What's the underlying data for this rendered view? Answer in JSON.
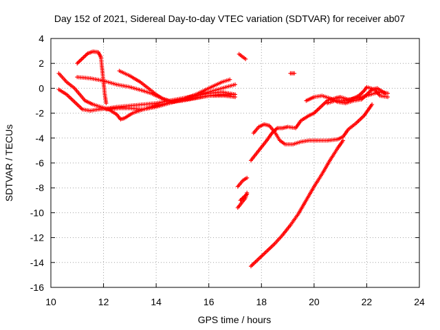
{
  "chart_data": {
    "type": "scatter",
    "title": "Day 152 of 2021, Sidereal Day-to-day VTEC variation (SDTVAR) for receiver ab07",
    "xlabel": "GPS time / hours",
    "ylabel": "SDTVAR / TECUs",
    "xlim": [
      10,
      24
    ],
    "ylim": [
      -16,
      4
    ],
    "xticks": [
      "10",
      "12",
      "14",
      "16",
      "18",
      "20",
      "22",
      "24"
    ],
    "yticks": [
      "-16",
      "-14",
      "-12",
      "-10",
      "-8",
      "-6",
      "-4",
      "-2",
      "0",
      "2",
      "4"
    ],
    "grid": true,
    "marker": "plus",
    "color": "#ff0000",
    "series": [
      {
        "points": [
          [
            11.0,
            2.0
          ],
          [
            11.2,
            2.4
          ],
          [
            11.4,
            2.8
          ],
          [
            11.6,
            2.95
          ],
          [
            11.8,
            2.9
          ],
          [
            11.9,
            2.5
          ]
        ]
      },
      {
        "points": [
          [
            11.9,
            2.5
          ],
          [
            11.95,
            1.5
          ],
          [
            12.0,
            0.5
          ],
          [
            12.05,
            -0.5
          ],
          [
            12.1,
            -1.2
          ]
        ]
      },
      {
        "points": [
          [
            10.3,
            1.2
          ],
          [
            10.6,
            0.5
          ],
          [
            10.9,
            0.0
          ],
          [
            11.1,
            -0.5
          ],
          [
            11.3,
            -1.0
          ],
          [
            11.6,
            -1.3
          ],
          [
            11.9,
            -1.5
          ],
          [
            12.2,
            -1.7
          ],
          [
            12.5,
            -2.1
          ],
          [
            12.65,
            -2.5
          ],
          [
            12.8,
            -2.4
          ],
          [
            13.1,
            -2.0
          ],
          [
            13.5,
            -1.7
          ],
          [
            14.0,
            -1.5
          ],
          [
            14.5,
            -1.2
          ],
          [
            15.0,
            -0.9
          ],
          [
            15.5,
            -0.6
          ],
          [
            16.0,
            -0.4
          ],
          [
            16.5,
            -0.3
          ],
          [
            17.0,
            -0.5
          ]
        ]
      },
      {
        "points": [
          [
            10.3,
            -0.1
          ],
          [
            10.6,
            -0.5
          ],
          [
            10.9,
            -1.1
          ],
          [
            11.2,
            -1.7
          ],
          [
            11.5,
            -1.8
          ],
          [
            11.8,
            -1.7
          ],
          [
            12.2,
            -1.6
          ],
          [
            12.5,
            -1.5
          ],
          [
            13.0,
            -1.4
          ],
          [
            13.5,
            -1.3
          ],
          [
            14.0,
            -1.2
          ],
          [
            14.5,
            -1.0
          ],
          [
            15.0,
            -0.8
          ],
          [
            15.5,
            -0.6
          ],
          [
            16.0,
            -0.3
          ],
          [
            16.5,
            0.0
          ],
          [
            17.0,
            0.3
          ]
        ]
      },
      {
        "points": [
          [
            11.0,
            0.9
          ],
          [
            11.5,
            0.8
          ],
          [
            12.0,
            0.6
          ],
          [
            12.5,
            0.3
          ],
          [
            13.0,
            0.1
          ],
          [
            13.5,
            -0.2
          ],
          [
            13.8,
            -0.4
          ],
          [
            14.2,
            -0.8
          ],
          [
            14.5,
            -1.0
          ],
          [
            15.0,
            -0.9
          ],
          [
            15.5,
            -0.5
          ],
          [
            16.0,
            0.0
          ],
          [
            16.5,
            0.5
          ],
          [
            16.8,
            0.7
          ]
        ]
      },
      {
        "points": [
          [
            12.6,
            1.4
          ],
          [
            13.0,
            1.0
          ],
          [
            13.4,
            0.5
          ],
          [
            13.7,
            0.0
          ],
          [
            14.0,
            -0.5
          ],
          [
            14.3,
            -0.9
          ],
          [
            14.6,
            -1.1
          ],
          [
            15.0,
            -1.0
          ],
          [
            15.5,
            -0.8
          ],
          [
            16.0,
            -0.6
          ],
          [
            16.5,
            -0.5
          ],
          [
            17.0,
            -0.5
          ]
        ]
      },
      {
        "points": [
          [
            12.1,
            -1.7
          ],
          [
            12.6,
            -1.6
          ],
          [
            13.0,
            -1.6
          ],
          [
            13.5,
            -1.7
          ],
          [
            13.8,
            -1.5
          ],
          [
            14.2,
            -1.3
          ],
          [
            14.8,
            -1.0
          ],
          [
            15.4,
            -0.8
          ],
          [
            16.0,
            -0.6
          ],
          [
            16.6,
            -0.6
          ],
          [
            17.0,
            -0.7
          ]
        ]
      },
      {
        "points": [
          [
            17.15,
            2.75
          ],
          [
            17.3,
            2.5
          ],
          [
            17.4,
            2.35
          ]
        ]
      },
      {
        "points": [
          [
            19.1,
            1.2
          ],
          [
            19.25,
            1.2
          ]
        ]
      },
      {
        "points": [
          [
            17.1,
            -7.9
          ],
          [
            17.3,
            -7.4
          ],
          [
            17.45,
            -7.2
          ]
        ]
      },
      {
        "points": [
          [
            17.1,
            -9.6
          ],
          [
            17.25,
            -9.2
          ],
          [
            17.4,
            -8.8
          ],
          [
            17.45,
            -8.4
          ]
        ]
      },
      {
        "points": [
          [
            17.2,
            -9.0
          ],
          [
            17.35,
            -8.7
          ],
          [
            17.45,
            -8.5
          ]
        ]
      },
      {
        "points": [
          [
            17.6,
            -5.8
          ],
          [
            17.9,
            -5.0
          ],
          [
            18.2,
            -4.2
          ],
          [
            18.4,
            -3.6
          ],
          [
            18.6,
            -3.2
          ],
          [
            18.8,
            -3.2
          ],
          [
            19.0,
            -3.1
          ],
          [
            19.3,
            -3.2
          ],
          [
            19.5,
            -2.6
          ],
          [
            19.8,
            -2.2
          ],
          [
            20.0,
            -2.0
          ],
          [
            20.2,
            -1.6
          ],
          [
            20.5,
            -1.0
          ],
          [
            20.8,
            -0.8
          ],
          [
            21.0,
            -0.7
          ],
          [
            21.3,
            -0.9
          ],
          [
            21.6,
            -0.8
          ],
          [
            22.0,
            -0.6
          ],
          [
            22.3,
            -0.4
          ],
          [
            22.5,
            -0.3
          ],
          [
            22.8,
            -0.4
          ]
        ]
      },
      {
        "points": [
          [
            17.7,
            -3.6
          ],
          [
            17.9,
            -3.1
          ],
          [
            18.1,
            -2.9
          ],
          [
            18.3,
            -3.0
          ],
          [
            18.5,
            -3.5
          ],
          [
            18.7,
            -4.2
          ],
          [
            18.9,
            -4.5
          ],
          [
            19.2,
            -4.5
          ],
          [
            19.5,
            -4.3
          ],
          [
            19.8,
            -4.2
          ],
          [
            20.2,
            -4.2
          ],
          [
            20.5,
            -4.2
          ],
          [
            20.9,
            -4.1
          ],
          [
            21.1,
            -3.9
          ],
          [
            21.3,
            -3.3
          ],
          [
            21.6,
            -2.8
          ],
          [
            21.9,
            -2.2
          ],
          [
            22.1,
            -1.6
          ],
          [
            22.2,
            -1.3
          ]
        ]
      },
      {
        "points": [
          [
            17.6,
            -14.3
          ],
          [
            17.9,
            -13.7
          ],
          [
            18.2,
            -13.1
          ],
          [
            18.5,
            -12.5
          ],
          [
            18.8,
            -11.8
          ],
          [
            19.1,
            -11.0
          ],
          [
            19.4,
            -10.1
          ],
          [
            19.7,
            -9.0
          ],
          [
            20.0,
            -7.9
          ],
          [
            20.3,
            -6.9
          ],
          [
            20.6,
            -5.8
          ],
          [
            20.9,
            -4.8
          ],
          [
            21.1,
            -4.2
          ]
        ]
      },
      {
        "points": [
          [
            19.7,
            -1.0
          ],
          [
            20.0,
            -0.7
          ],
          [
            20.3,
            -0.6
          ],
          [
            20.6,
            -0.8
          ],
          [
            20.9,
            -1.1
          ],
          [
            21.2,
            -1.2
          ],
          [
            21.5,
            -1.0
          ],
          [
            21.8,
            -0.9
          ],
          [
            22.0,
            -0.5
          ],
          [
            22.2,
            -0.1
          ],
          [
            22.4,
            0.0
          ],
          [
            22.7,
            -0.4
          ]
        ]
      },
      {
        "points": [
          [
            20.5,
            -1.2
          ],
          [
            20.8,
            -1.0
          ],
          [
            21.1,
            -1.0
          ],
          [
            21.4,
            -0.9
          ],
          [
            21.7,
            -0.6
          ],
          [
            21.9,
            -0.2
          ],
          [
            22.0,
            0.1
          ],
          [
            22.3,
            -0.1
          ],
          [
            22.5,
            -0.6
          ],
          [
            22.8,
            -0.7
          ]
        ]
      }
    ]
  }
}
